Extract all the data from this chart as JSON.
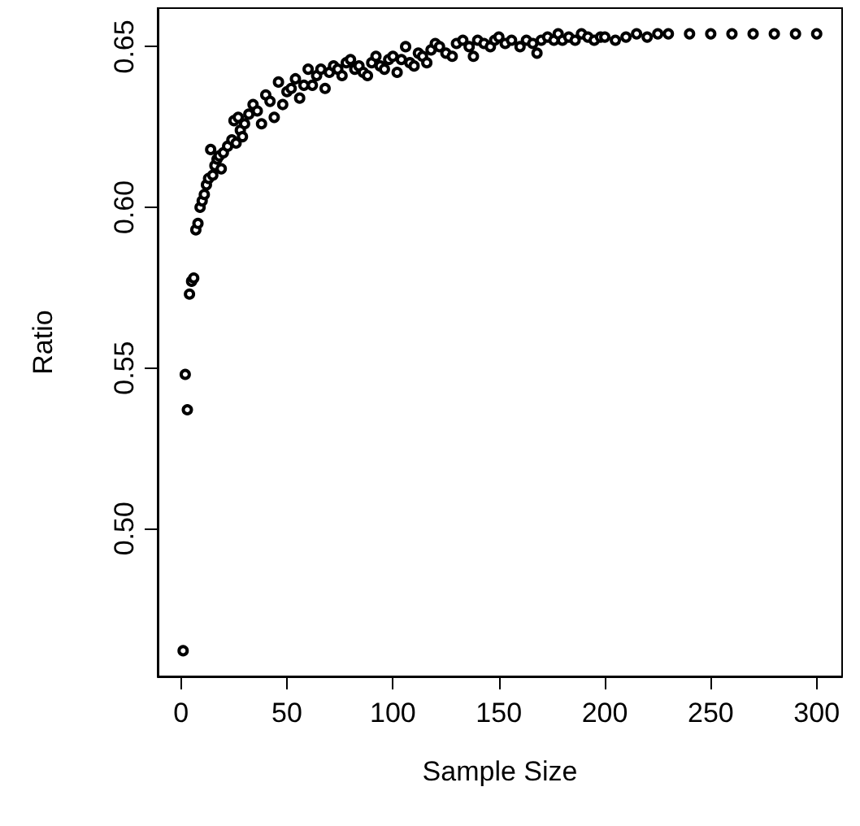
{
  "chart_data": {
    "type": "scatter",
    "xlabel": "Sample Size",
    "ylabel": "Ratio",
    "x": [
      1,
      2,
      3,
      4,
      5,
      6,
      7,
      8,
      9,
      10,
      11,
      12,
      13,
      14,
      15,
      16,
      17,
      18,
      19,
      20,
      22,
      24,
      25,
      26,
      27,
      28,
      29,
      30,
      32,
      34,
      36,
      38,
      40,
      42,
      44,
      46,
      48,
      50,
      52,
      54,
      56,
      58,
      60,
      62,
      64,
      66,
      68,
      70,
      72,
      74,
      76,
      78,
      80,
      82,
      84,
      86,
      88,
      90,
      92,
      94,
      96,
      98,
      100,
      102,
      104,
      106,
      108,
      110,
      112,
      114,
      116,
      118,
      120,
      122,
      125,
      128,
      130,
      133,
      136,
      138,
      140,
      143,
      146,
      148,
      150,
      153,
      156,
      160,
      163,
      166,
      168,
      170,
      173,
      176,
      178,
      180,
      183,
      186,
      189,
      192,
      195,
      198,
      200,
      205,
      210,
      215,
      220,
      225,
      230,
      240,
      250,
      260,
      270,
      280,
      290,
      300
    ],
    "series": [
      {
        "color": "#000000",
        "values": [
          0.462,
          0.548,
          0.537,
          0.573,
          0.577,
          0.578,
          0.593,
          0.595,
          0.6,
          0.602,
          0.604,
          0.607,
          0.609,
          0.618,
          0.61,
          0.613,
          0.615,
          0.616,
          0.612,
          0.617,
          0.619,
          0.621,
          0.627,
          0.62,
          0.628,
          0.624,
          0.622,
          0.626,
          0.629,
          0.632,
          0.63,
          0.626,
          0.635,
          0.633,
          0.628,
          0.639,
          0.632,
          0.636,
          0.637,
          0.64,
          0.634,
          0.638,
          0.643,
          0.638,
          0.641,
          0.643,
          0.637,
          0.642,
          0.644,
          0.643,
          0.641,
          0.645,
          0.646,
          0.643,
          0.644,
          0.642,
          0.641,
          0.645,
          0.647,
          0.644,
          0.643,
          0.646,
          0.647,
          0.642,
          0.646,
          0.65,
          0.645,
          0.644,
          0.648,
          0.647,
          0.645,
          0.649,
          0.651,
          0.65,
          0.648,
          0.647,
          0.651,
          0.652,
          0.65,
          0.647,
          0.652,
          0.651,
          0.65,
          0.652,
          0.653,
          0.651,
          0.652,
          0.65,
          0.652,
          0.651,
          0.648,
          0.652,
          0.653,
          0.652,
          0.654,
          0.652,
          0.653,
          0.652,
          0.654,
          0.653,
          0.652,
          0.653,
          0.653,
          0.652,
          0.653,
          0.654,
          0.653,
          0.654,
          0.654,
          0.654,
          0.654,
          0.654,
          0.654,
          0.654,
          0.654,
          0.654
        ]
      }
    ],
    "xlim": [
      -11,
      312
    ],
    "xticks": [
      0,
      50,
      100,
      150,
      200,
      250,
      300
    ],
    "ylim": [
      0.454,
      0.662
    ],
    "yticks": [
      {
        "value": 0.5,
        "label": "0.50"
      },
      0.55,
      {
        "value": 0.6,
        "label": "0.60"
      },
      0.65
    ],
    "marker": "circle",
    "grid": false
  }
}
